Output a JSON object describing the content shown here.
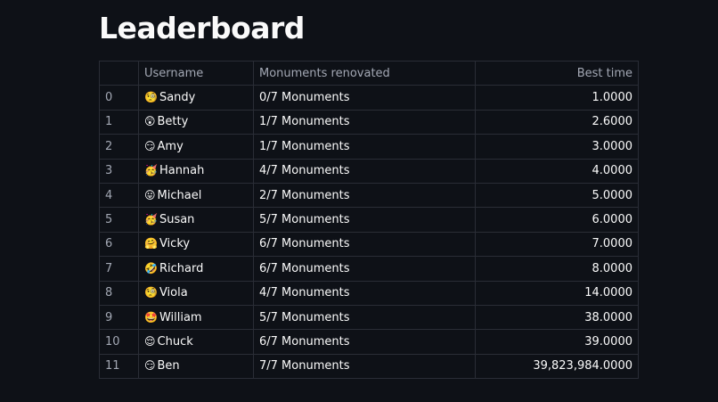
{
  "title": "Leaderboard",
  "columns": [
    "",
    "Username",
    "Monuments renovated",
    "Best time"
  ],
  "rows": [
    {
      "index": "0",
      "emoji": "🧐",
      "name": "Sandy",
      "monuments": "0/7 Monuments",
      "time": "1.0000"
    },
    {
      "index": "1",
      "emoji": "😲",
      "name": "Betty",
      "monuments": "1/7 Monuments",
      "time": "2.6000"
    },
    {
      "index": "2",
      "emoji": "😏",
      "name": "Amy",
      "monuments": "1/7 Monuments",
      "time": "3.0000"
    },
    {
      "index": "3",
      "emoji": "🥳",
      "name": "Hannah",
      "monuments": "4/7 Monuments",
      "time": "4.0000"
    },
    {
      "index": "4",
      "emoji": "😛",
      "name": "Michael",
      "monuments": "2/7 Monuments",
      "time": "5.0000"
    },
    {
      "index": "5",
      "emoji": "🥳",
      "name": "Susan",
      "monuments": "5/7 Monuments",
      "time": "6.0000"
    },
    {
      "index": "6",
      "emoji": "🤗",
      "name": "Vicky",
      "monuments": "6/7 Monuments",
      "time": "7.0000"
    },
    {
      "index": "7",
      "emoji": "🤣",
      "name": "Richard",
      "monuments": "6/7 Monuments",
      "time": "8.0000"
    },
    {
      "index": "8",
      "emoji": "🧐",
      "name": "Viola",
      "monuments": "4/7 Monuments",
      "time": "14.0000"
    },
    {
      "index": "9",
      "emoji": "🤩",
      "name": "William",
      "monuments": "5/7 Monuments",
      "time": "38.0000"
    },
    {
      "index": "10",
      "emoji": "😌",
      "name": "Chuck",
      "monuments": "6/7 Monuments",
      "time": "39.0000"
    },
    {
      "index": "11",
      "emoji": "😏",
      "name": "Ben",
      "monuments": "7/7 Monuments",
      "time": "39,823,984.0000"
    }
  ]
}
